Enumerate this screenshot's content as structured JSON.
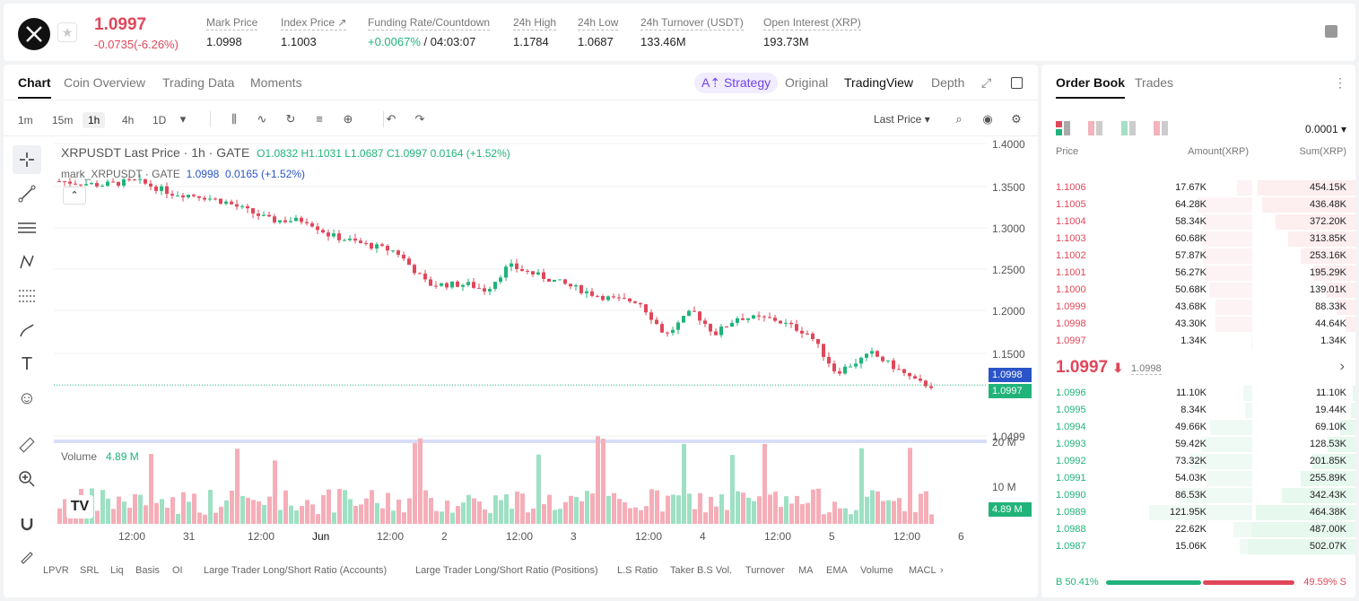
{
  "header": {
    "last_price": "1.0997",
    "change": "-0.0735(-6.26%)",
    "stats": [
      {
        "label": "Mark Price",
        "value": "1.0998"
      },
      {
        "label": "Index Price ↗",
        "value": "1.1003"
      },
      {
        "label": "Funding Rate/Countdown",
        "value_green": "+0.0067%",
        "value": " / 04:03:07"
      },
      {
        "label": "24h High",
        "value": "1.1784"
      },
      {
        "label": "24h Low",
        "value": "1.0687"
      },
      {
        "label": "24h Turnover (USDT)",
        "value": "133.46M"
      },
      {
        "label": "Open Interest (XRP)",
        "value": "193.73M"
      }
    ]
  },
  "chart_tabs": [
    "Chart",
    "Coin Overview",
    "Trading Data",
    "Moments"
  ],
  "view_tabs": {
    "strategy": "Strategy",
    "original": "Original",
    "tradingview": "TradingView",
    "depth": "Depth"
  },
  "timeframes": [
    "1m",
    "15m",
    "1h",
    "4h",
    "1D"
  ],
  "price_type": "Last Price",
  "legend": {
    "title": "XRPUSDT Last Price · 1h · GATE",
    "o": "O1.0832",
    "h": "H1.1031",
    "l": "L1.0687",
    "c": "C1.0997",
    "chg": "0.0164 (+1.52%)",
    "mark_title": "mark_XRPUSDT · GATE",
    "mark_val": "1.0998",
    "mark_chg": "0.0165 (+1.52%)",
    "volume_label": "Volume",
    "volume_val": "4.89 M"
  },
  "price_ticks": [
    "1.4000",
    "1.3500",
    "1.3000",
    "1.2500",
    "1.2000",
    "1.1500",
    "1.0499"
  ],
  "price_tags": {
    "mark": "1.0998",
    "last": "1.0997",
    "volume": "4.89 M"
  },
  "volume_ticks": [
    "20 M",
    "10 M"
  ],
  "time_ticks": [
    "12:00",
    "31",
    "12:00",
    "Jun",
    "12:00",
    "2",
    "12:00",
    "3",
    "12:00",
    "4",
    "12:00",
    "5",
    "12:00",
    "6"
  ],
  "indicators": [
    "LPVR",
    "SRL",
    "Liq",
    "Basis",
    "OI",
    "Large Trader Long/Short Ratio (Accounts)",
    "Large Trader Long/Short Ratio (Positions)",
    "L.S Ratio",
    "Taker B.S Vol.",
    "Turnover",
    "MA",
    "EMA",
    "Volume",
    "MACL"
  ],
  "orderbook": {
    "tabs": [
      "Order Book",
      "Trades"
    ],
    "precision": "0.0001",
    "headers": {
      "price": "Price",
      "amount": "Amount(XRP)",
      "sum": "Sum(XRP)"
    },
    "asks": [
      {
        "price": "1.1006",
        "amount": "17.67K",
        "sum": "454.15K"
      },
      {
        "price": "1.1005",
        "amount": "64.28K",
        "sum": "436.48K"
      },
      {
        "price": "1.1004",
        "amount": "58.34K",
        "sum": "372.20K"
      },
      {
        "price": "1.1003",
        "amount": "60.68K",
        "sum": "313.85K"
      },
      {
        "price": "1.1002",
        "amount": "57.87K",
        "sum": "253.16K"
      },
      {
        "price": "1.1001",
        "amount": "56.27K",
        "sum": "195.29K"
      },
      {
        "price": "1.1000",
        "amount": "50.68K",
        "sum": "139.01K"
      },
      {
        "price": "1.0999",
        "amount": "43.68K",
        "sum": "88.33K"
      },
      {
        "price": "1.0998",
        "amount": "43.30K",
        "sum": "44.64K"
      },
      {
        "price": "1.0997",
        "amount": "1.34K",
        "sum": "1.34K"
      }
    ],
    "mid_price": "1.0997",
    "mid_mark": "1.0998",
    "bids": [
      {
        "price": "1.0996",
        "amount": "11.10K",
        "sum": "11.10K"
      },
      {
        "price": "1.0995",
        "amount": "8.34K",
        "sum": "19.44K"
      },
      {
        "price": "1.0994",
        "amount": "49.66K",
        "sum": "69.10K"
      },
      {
        "price": "1.0993",
        "amount": "59.42K",
        "sum": "128.53K"
      },
      {
        "price": "1.0992",
        "amount": "73.32K",
        "sum": "201.85K"
      },
      {
        "price": "1.0991",
        "amount": "54.03K",
        "sum": "255.89K"
      },
      {
        "price": "1.0990",
        "amount": "86.53K",
        "sum": "342.43K"
      },
      {
        "price": "1.0989",
        "amount": "121.95K",
        "sum": "464.38K"
      },
      {
        "price": "1.0988",
        "amount": "22.62K",
        "sum": "487.00K"
      },
      {
        "price": "1.0987",
        "amount": "15.06K",
        "sum": "502.07K"
      }
    ],
    "ratio": {
      "b_label": "B",
      "b": "50.41%",
      "s": "49.59%",
      "s_label": "S",
      "b_frac": 0.5041
    }
  },
  "colors": {
    "up": "#21b37a",
    "down": "#e0475a",
    "accent": "#6f44e8"
  }
}
